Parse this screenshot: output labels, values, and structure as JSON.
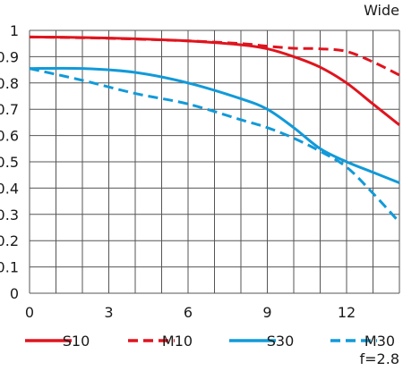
{
  "chart_data": {
    "type": "line",
    "title": "",
    "xlabel": "",
    "ylabel": "",
    "corner_label_top": "Wide",
    "corner_label_bottom": "f=2.8",
    "xlim": [
      0,
      14
    ],
    "ylim": [
      0,
      1
    ],
    "x_ticks": [
      0,
      3,
      6,
      9,
      12
    ],
    "x_tick_labels": [
      "0",
      "3",
      "6",
      "9",
      "12"
    ],
    "y_ticks": [
      0,
      0.1,
      0.2,
      0.3,
      0.4,
      0.5,
      0.6,
      0.7,
      0.8,
      0.9,
      1
    ],
    "y_tick_labels": [
      "0",
      "0.1",
      "0.2",
      "0.3",
      "0.4",
      "0.5",
      "0.6",
      "0.7",
      "0.8",
      "0.9",
      "1"
    ],
    "grid": true,
    "legend_position": "bottom",
    "series": [
      {
        "name": "S10",
        "color": "#e0141e",
        "dash": false,
        "x": [
          0,
          2,
          4,
          6,
          8,
          9,
          10,
          11,
          12,
          13,
          14
        ],
        "y": [
          0.975,
          0.973,
          0.968,
          0.96,
          0.945,
          0.93,
          0.9,
          0.86,
          0.8,
          0.72,
          0.64
        ]
      },
      {
        "name": "M10",
        "color": "#e0141e",
        "dash": true,
        "x": [
          0,
          2,
          4,
          6,
          8,
          9,
          10,
          11,
          12,
          13,
          14
        ],
        "y": [
          0.975,
          0.972,
          0.967,
          0.96,
          0.95,
          0.94,
          0.932,
          0.93,
          0.92,
          0.88,
          0.83
        ]
      },
      {
        "name": "S30",
        "color": "#119ad9",
        "dash": false,
        "x": [
          0,
          2,
          4,
          6,
          8,
          9,
          10,
          11,
          12,
          13,
          14
        ],
        "y": [
          0.855,
          0.855,
          0.84,
          0.8,
          0.74,
          0.7,
          0.63,
          0.55,
          0.5,
          0.46,
          0.42
        ]
      },
      {
        "name": "M30",
        "color": "#119ad9",
        "dash": true,
        "x": [
          0,
          2,
          4,
          6,
          8,
          9,
          10,
          11,
          12,
          13,
          14
        ],
        "y": [
          0.855,
          0.81,
          0.76,
          0.72,
          0.66,
          0.63,
          0.59,
          0.54,
          0.48,
          0.38,
          0.27
        ]
      }
    ]
  }
}
